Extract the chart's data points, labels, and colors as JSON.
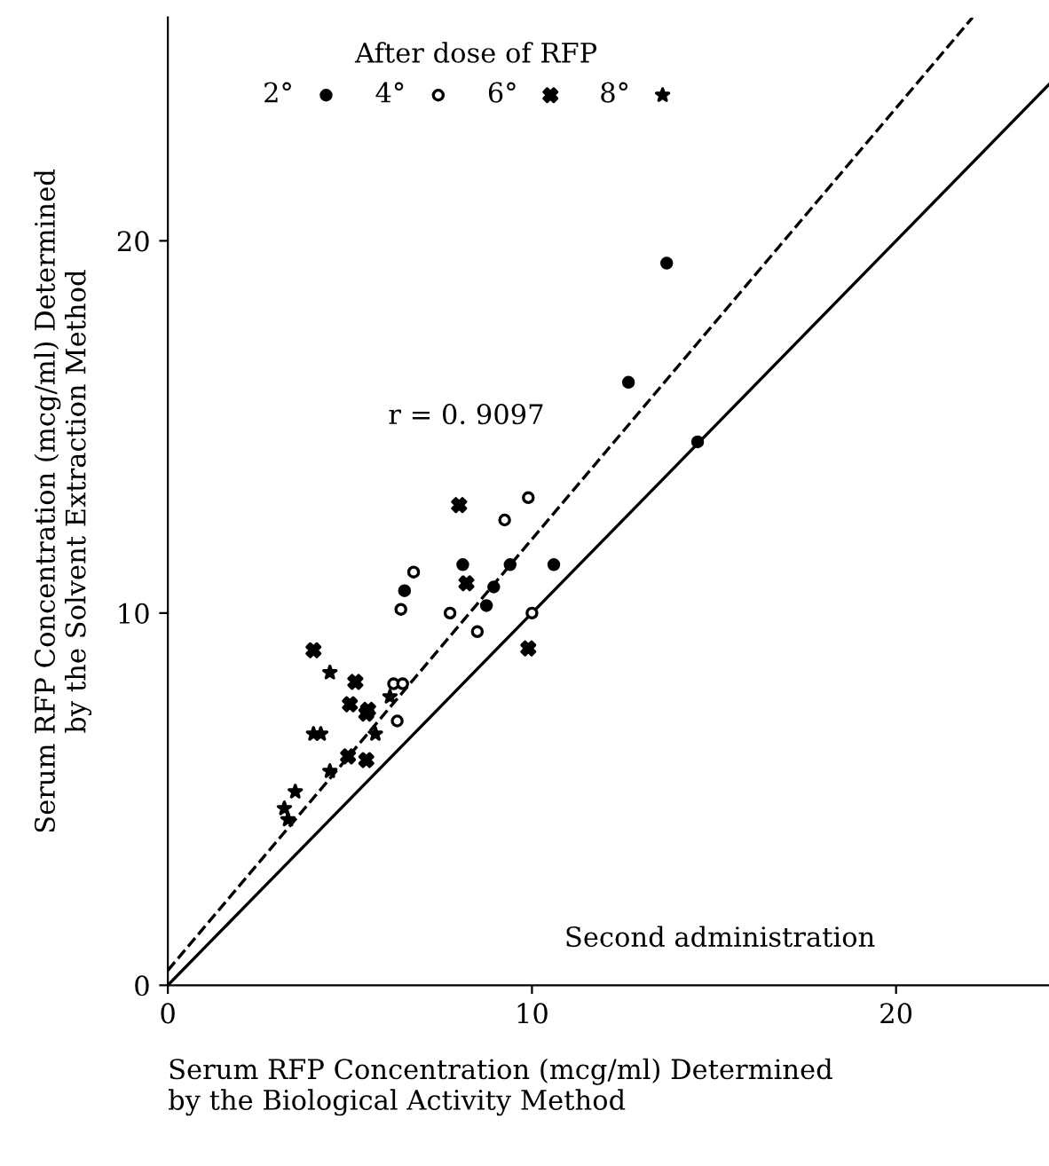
{
  "chart_data": {
    "type": "scatter",
    "xlabel": "Serum RFP Concentration (mcg/ml) Determined\nby the Biological Activity Method",
    "ylabel": "Serum RFP Concentration (mcg/ml) Determined\nby the Solvent Extraction Method",
    "legend_title": "After dose of RFP",
    "legend": "top",
    "xlim": [
      0,
      24.2
    ],
    "ylim": [
      0,
      26
    ],
    "xticks": [
      0,
      10,
      20
    ],
    "yticks": [
      0,
      10,
      20
    ],
    "grid": false,
    "annotations": [
      "r = 0. 9097",
      "Second administration"
    ],
    "series": [
      {
        "name": "2°",
        "color": "#000000",
        "marker": "circle",
        "x": [
          13.7,
          12.65,
          14.55,
          8.1,
          9.4,
          10.6,
          6.5,
          8.95,
          8.75
        ],
        "values": [
          19.4,
          16.2,
          14.6,
          11.3,
          11.3,
          11.3,
          10.6,
          10.7,
          10.2
        ]
      },
      {
        "name": "4°",
        "color": "#000000",
        "marker": "circle",
        "x": [
          9.9,
          9.25,
          6.75,
          6.4,
          7.75,
          10.0,
          8.5,
          6.2,
          6.45,
          6.3
        ],
        "values": [
          13.1,
          12.5,
          11.1,
          10.1,
          10.0,
          10.0,
          9.5,
          8.1,
          8.1,
          7.1
        ]
      },
      {
        "name": "6°",
        "color": "#000000",
        "marker": "cross",
        "x": [
          8.0,
          8.2,
          9.9,
          4.0,
          5.15,
          5.0,
          5.5,
          5.45,
          4.95,
          5.45
        ],
        "values": [
          12.9,
          10.8,
          9.05,
          9.0,
          8.15,
          7.55,
          7.4,
          7.3,
          6.15,
          6.05
        ]
      },
      {
        "name": "8°",
        "color": "#000000",
        "marker": "star",
        "x": [
          4.45,
          4.0,
          4.2,
          6.1,
          5.7,
          4.45,
          3.5,
          3.2,
          3.3
        ],
        "values": [
          8.4,
          6.75,
          6.75,
          7.75,
          6.75,
          5.75,
          5.2,
          4.75,
          4.45
        ]
      },
      {
        "type": "line",
        "color": "#000000",
        "line_style": "dashed",
        "x": [
          0,
          22.1
        ],
        "values": [
          0.4,
          26
        ]
      },
      {
        "type": "line",
        "color": "#000000",
        "line_style": "solid",
        "x": [
          0,
          24.2
        ],
        "values": [
          0,
          24.2
        ]
      }
    ]
  }
}
